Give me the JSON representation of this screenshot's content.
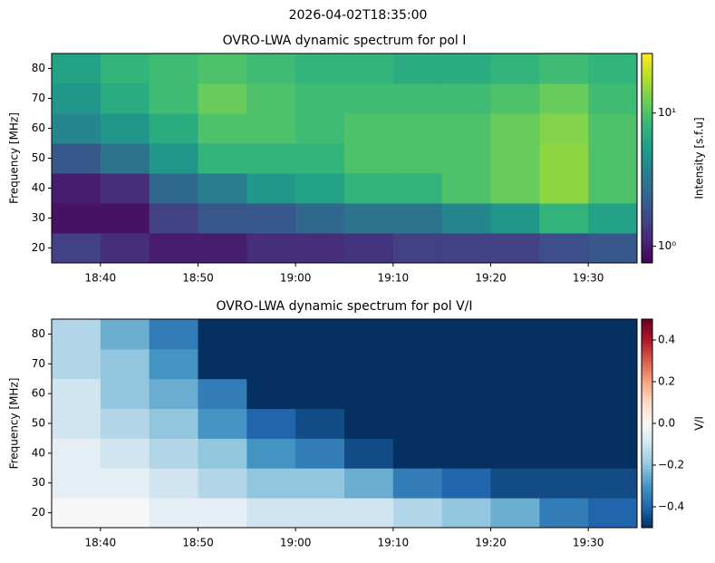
{
  "figure_title": "2026-04-02T18:35:00",
  "chart_data": [
    {
      "type": "heatmap",
      "title": "OVRO-LWA dynamic spectrum for pol I",
      "y_label": "Frequency [MHz]",
      "colorbar_label": "Intensity [s.f.u]",
      "colormap": "viridis",
      "color_scale": "log",
      "x": [
        "18:35",
        "18:40",
        "18:45",
        "18:50",
        "18:55",
        "19:00",
        "19:05",
        "19:10",
        "19:15",
        "19:20",
        "19:25",
        "19:30",
        "19:35"
      ],
      "y": [
        15,
        25,
        35,
        45,
        55,
        65,
        75,
        85
      ],
      "values": [
        [
          1.5,
          1.2,
          1,
          1,
          1.2,
          1.2,
          1.3,
          1.5,
          1.5,
          1.5,
          1.8,
          2
        ],
        [
          0.9,
          0.9,
          1.5,
          2,
          2,
          2.5,
          3,
          3,
          4,
          5,
          8,
          6
        ],
        [
          1,
          1.2,
          2.5,
          3.5,
          5,
          6,
          8,
          8,
          10,
          12,
          15,
          10
        ],
        [
          2,
          3,
          5,
          8,
          8,
          8,
          10,
          10,
          10,
          12,
          15,
          10
        ],
        [
          4,
          5,
          7,
          10,
          10,
          9,
          10,
          10,
          10,
          12,
          14,
          10
        ],
        [
          5,
          7,
          9,
          12,
          10,
          9,
          9,
          9,
          9,
          10,
          12,
          9
        ],
        [
          6,
          8,
          9,
          10,
          9,
          8,
          8,
          7,
          7,
          8,
          9,
          8
        ]
      ],
      "xlim": [
        "18:35",
        "19:35"
      ],
      "xticks": [
        "18:40",
        "18:50",
        "19:00",
        "19:10",
        "19:20",
        "19:30"
      ],
      "ylim": [
        15,
        85
      ],
      "yticks": [
        20,
        30,
        40,
        50,
        60,
        70,
        80
      ],
      "clim": [
        0.75,
        28
      ],
      "cticks": [
        {
          "value": 1,
          "label": "10⁰"
        },
        {
          "value": 10,
          "label": "10¹"
        }
      ]
    },
    {
      "type": "heatmap",
      "title": "OVRO-LWA dynamic spectrum for pol V/I",
      "y_label": "Frequency [MHz]",
      "colorbar_label": "V/I",
      "colormap": "RdBu_r",
      "color_scale": "linear",
      "x": [
        "18:35",
        "18:40",
        "18:45",
        "18:50",
        "18:55",
        "19:00",
        "19:05",
        "19:10",
        "19:15",
        "19:20",
        "19:25",
        "19:30",
        "19:35"
      ],
      "y": [
        15,
        25,
        35,
        45,
        55,
        65,
        75,
        85
      ],
      "values": [
        [
          0,
          0,
          -0.05,
          -0.05,
          -0.1,
          -0.1,
          -0.1,
          -0.15,
          -0.2,
          -0.25,
          -0.35,
          -0.4
        ],
        [
          -0.05,
          -0.05,
          -0.1,
          -0.15,
          -0.2,
          -0.2,
          -0.25,
          -0.35,
          -0.4,
          -0.45,
          -0.45,
          -0.45
        ],
        [
          -0.05,
          -0.1,
          -0.15,
          -0.2,
          -0.3,
          -0.35,
          -0.45,
          -0.5,
          -0.5,
          -0.5,
          -0.5,
          -0.5
        ],
        [
          -0.1,
          -0.15,
          -0.2,
          -0.3,
          -0.4,
          -0.45,
          -0.5,
          -0.5,
          -0.5,
          -0.5,
          -0.5,
          -0.5
        ],
        [
          -0.1,
          -0.2,
          -0.25,
          -0.35,
          -0.5,
          -0.5,
          -0.5,
          -0.5,
          -0.5,
          -0.5,
          -0.5,
          -0.5
        ],
        [
          -0.15,
          -0.2,
          -0.3,
          -0.5,
          -0.5,
          -0.5,
          -0.5,
          -0.5,
          -0.5,
          -0.5,
          -0.5,
          -0.5
        ],
        [
          -0.15,
          -0.25,
          -0.35,
          -0.5,
          -0.5,
          -0.5,
          -0.5,
          -0.5,
          -0.5,
          -0.5,
          -0.5,
          -0.5
        ]
      ],
      "xlim": [
        "18:35",
        "19:35"
      ],
      "xticks": [
        "18:40",
        "18:50",
        "19:00",
        "19:10",
        "19:20",
        "19:30"
      ],
      "ylim": [
        15,
        85
      ],
      "yticks": [
        20,
        30,
        40,
        50,
        60,
        70,
        80
      ],
      "clim": [
        -0.5,
        0.5
      ],
      "cticks": [
        {
          "value": -0.4,
          "label": "−0.4"
        },
        {
          "value": -0.2,
          "label": "−0.2"
        },
        {
          "value": 0,
          "label": "0.0"
        },
        0.2,
        0.4
      ]
    }
  ]
}
